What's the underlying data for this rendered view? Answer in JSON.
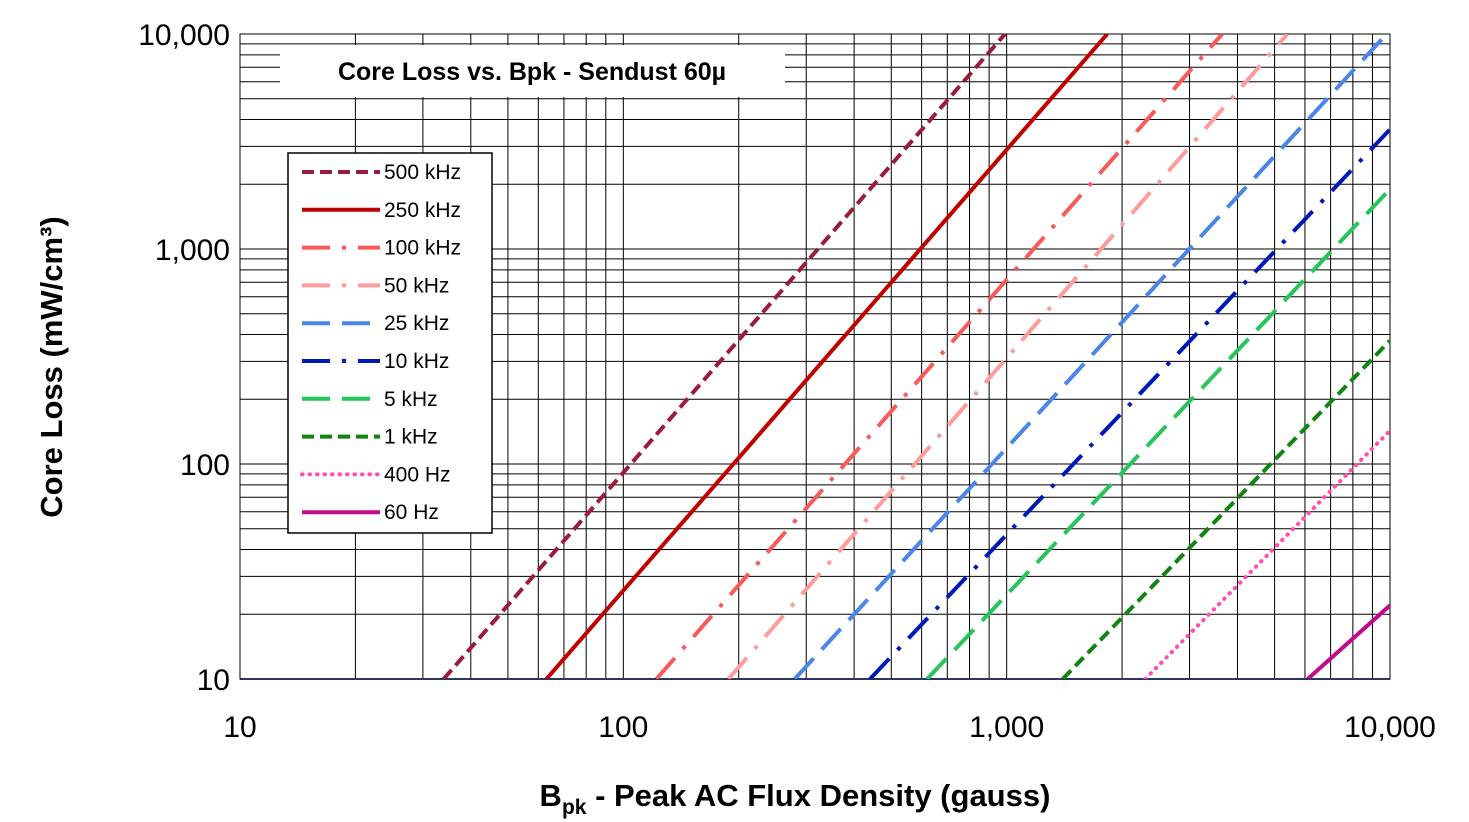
{
  "chart_data": {
    "type": "line",
    "title": "Core Loss vs. Bpk - Sendust  60µ",
    "xlabel": {
      "main": "B",
      "subscript": "pk",
      "rest": " - Peak AC Flux Density (gauss)"
    },
    "ylabel": "Core Loss (mW/cm³)",
    "x_scale": "log",
    "y_scale": "log",
    "xlim": [
      10,
      10000
    ],
    "ylim": [
      10,
      10000
    ],
    "x_ticks": [
      {
        "value": 10,
        "label": "10"
      },
      {
        "value": 100,
        "label": "100"
      },
      {
        "value": 1000,
        "label": "1,000"
      },
      {
        "value": 10000,
        "label": "10,000"
      }
    ],
    "y_ticks": [
      {
        "value": 10,
        "label": "10"
      },
      {
        "value": 100,
        "label": "100"
      },
      {
        "value": 1000,
        "label": "1,000"
      },
      {
        "value": 10000,
        "label": "10,000"
      }
    ],
    "grid": true,
    "legend_position": "left",
    "series": [
      {
        "name": "500 kHz",
        "color": "#9b1b3a",
        "style": "dash",
        "points": [
          [
            34,
            10
          ],
          [
            990,
            10000
          ]
        ]
      },
      {
        "name": "250 kHz",
        "color": "#c00000",
        "style": "solid",
        "points": [
          [
            63,
            10
          ],
          [
            1830,
            10000
          ]
        ]
      },
      {
        "name": "100 kHz",
        "color": "#f85a5a",
        "style": "dash-dot",
        "points": [
          [
            122,
            10
          ],
          [
            3650,
            10000
          ]
        ]
      },
      {
        "name": "50 kHz",
        "color": "#ff9b9b",
        "style": "dash-dot",
        "points": [
          [
            188,
            10
          ],
          [
            5400,
            10000
          ]
        ]
      },
      {
        "name": "25 kHz",
        "color": "#4a86e8",
        "style": "long-dash",
        "points": [
          [
            280,
            10
          ],
          [
            10000,
            10400
          ]
        ]
      },
      {
        "name": "10 kHz",
        "color": "#0018b8",
        "style": "dash-dot",
        "points": [
          [
            440,
            10
          ],
          [
            10000,
            3600
          ]
        ]
      },
      {
        "name": "5 kHz",
        "color": "#26c55c",
        "style": "long-dash",
        "points": [
          [
            620,
            10
          ],
          [
            10000,
            1900
          ]
        ]
      },
      {
        "name": "1 kHz",
        "color": "#118411",
        "style": "dash",
        "points": [
          [
            1400,
            10
          ],
          [
            10000,
            375
          ]
        ]
      },
      {
        "name": "400 Hz",
        "color": "#ff4fb3",
        "style": "dot",
        "points": [
          [
            2300,
            10
          ],
          [
            10000,
            143
          ]
        ]
      },
      {
        "name": "60 Hz",
        "color": "#c00a8c",
        "style": "solid",
        "points": [
          [
            6100,
            10
          ],
          [
            10000,
            22
          ]
        ]
      }
    ]
  }
}
